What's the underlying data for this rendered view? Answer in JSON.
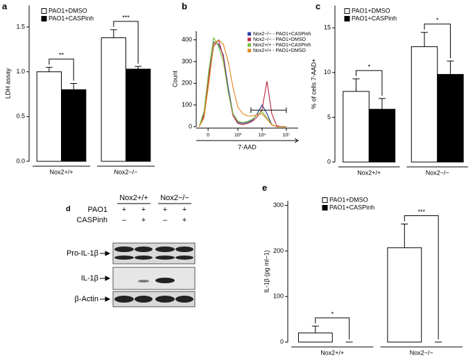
{
  "chart_data": [
    {
      "type": "bar",
      "panel": "a",
      "ylabel": "LDH assay",
      "categories": [
        "Nox2+/+",
        "Nox2−/−"
      ],
      "series": [
        {
          "name": "PAO1+DMSO",
          "color": "#ffffff",
          "values": [
            1.0,
            1.38
          ],
          "errors": [
            0.05,
            0.09
          ]
        },
        {
          "name": "PAO1+CASPinh",
          "color": "#000000",
          "values": [
            0.8,
            1.03
          ],
          "errors": [
            0.07,
            0.03
          ]
        }
      ],
      "significance": [
        "**",
        "***"
      ],
      "ylim": [
        0,
        1.74
      ],
      "yticks": [
        {
          "value": 0,
          "label": "0.0"
        },
        {
          "value": 0.5,
          "label": "0.5"
        },
        {
          "value": 1.0,
          "label": "1.0"
        },
        {
          "value": 1.5,
          "label": "1.5"
        }
      ]
    },
    {
      "type": "line",
      "panel": "b",
      "ylabel": "Count",
      "xlabel": "7-AAD",
      "x": [
        1.4,
        1.6,
        1.8,
        2.0,
        2.2,
        2.4,
        2.6,
        2.8,
        3.0,
        3.2,
        3.4,
        3.6,
        3.8,
        4.0,
        4.2,
        4.4,
        4.6,
        4.8,
        5.0
      ],
      "series": [
        {
          "name": "Nox2−/− - PAO1+CASPinh",
          "color": "#2b3f9e",
          "values": [
            0,
            60,
            250,
            390,
            380,
            330,
            180,
            60,
            20,
            15,
            20,
            30,
            60,
            100,
            60,
            10,
            0,
            0,
            0
          ]
        },
        {
          "name": "Nox2−/− - PAO1+DMSO",
          "color": "#c0304a",
          "values": [
            0,
            50,
            230,
            370,
            400,
            320,
            160,
            50,
            15,
            10,
            15,
            25,
            45,
            80,
            210,
            60,
            5,
            0,
            0
          ]
        },
        {
          "name": "Nox2+/+ - PAO1+CASPinh",
          "color": "#7dbf3c",
          "values": [
            0,
            70,
            260,
            410,
            370,
            300,
            160,
            60,
            25,
            20,
            25,
            35,
            55,
            70,
            40,
            10,
            0,
            0,
            0
          ]
        },
        {
          "name": "Nox2+/+ - PAO1+DMSO",
          "color": "#e58a2a",
          "values": [
            0,
            40,
            200,
            380,
            400,
            380,
            300,
            180,
            90,
            60,
            50,
            50,
            55,
            60,
            35,
            8,
            0,
            0,
            0
          ]
        }
      ],
      "gate": {
        "x": [
          3.54,
          5.0
        ],
        "y": 76
      },
      "xlim": [
        1.28,
        5.49
      ],
      "ylim": [
        0,
        440
      ],
      "xticks": [
        {
          "value": 1.77,
          "label": "0"
        },
        {
          "value": 3,
          "label": "10³"
        },
        {
          "value": 4,
          "label": "10⁴"
        },
        {
          "value": 5,
          "label": "10⁵"
        }
      ],
      "yticks": [
        0,
        100,
        200,
        300,
        400
      ]
    },
    {
      "type": "bar",
      "panel": "c",
      "ylabel": "% of cells 7-AAD+",
      "categories": [
        "Nox2+/+",
        "Nox2−/−"
      ],
      "series": [
        {
          "name": "PAO1+DMSO",
          "color": "#ffffff",
          "values": [
            7.9,
            12.9
          ],
          "errors": [
            1.4,
            1.6
          ]
        },
        {
          "name": "PAO1+CASPinh",
          "color": "#000000",
          "values": [
            5.9,
            9.8
          ],
          "errors": [
            1.2,
            1.5
          ]
        }
      ],
      "significance": [
        "*",
        "*"
      ],
      "ylim": [
        0,
        17.5
      ],
      "yticks": [
        0,
        5,
        10,
        15
      ]
    },
    {
      "type": "bar",
      "panel": "e",
      "ylabel": "IL-1β (pg ml−1)",
      "categories": [
        "Nox2+/+",
        "Nox2−/−"
      ],
      "series": [
        {
          "name": "PAO1+DMSO",
          "color": "#ffffff",
          "values": [
            20,
            207
          ],
          "errors": [
            15,
            52
          ]
        },
        {
          "name": "PAO1+CASPinh",
          "color": "#000000",
          "values": [
            0,
            0
          ],
          "errors": [
            0,
            0
          ]
        }
      ],
      "significance": [
        "*",
        "***"
      ],
      "ylim": [
        0,
        310
      ],
      "yticks": [
        0,
        100,
        200,
        300
      ]
    }
  ],
  "blot": {
    "panel": "d",
    "groups": [
      "Nox2+/+",
      "Nox2−/−"
    ],
    "rows": [
      {
        "label": "PAO1",
        "marks": [
          "+",
          "+",
          "+",
          "+"
        ]
      },
      {
        "label": "CASPinh",
        "marks": [
          "–",
          "+",
          "–",
          "+"
        ]
      }
    ],
    "bands": [
      "Pro-IL-1β",
      "IL-1β",
      "β-Actin"
    ]
  }
}
